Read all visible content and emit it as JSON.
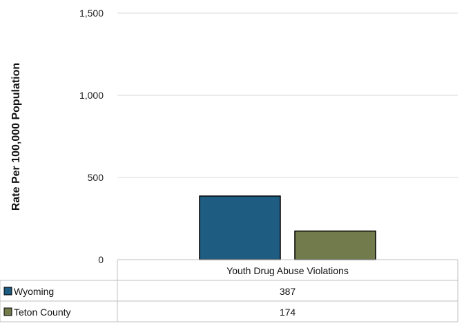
{
  "chart_data": {
    "type": "bar",
    "ylabel": "Rate Per 100,000 Population",
    "ylim": [
      0,
      1500
    ],
    "yticks": [
      0,
      500,
      1000,
      1500
    ],
    "ytick_labels": [
      "0",
      "500",
      "1,000",
      "1,500"
    ],
    "grid": true,
    "categories": [
      "Youth Drug Abuse Violations"
    ],
    "series": [
      {
        "name": "Wyoming",
        "values": [
          387
        ],
        "value_labels": [
          "387"
        ],
        "color": "#1f5c82"
      },
      {
        "name": "Teton County",
        "values": [
          174
        ],
        "value_labels": [
          "174"
        ],
        "color": "#727b4b"
      }
    ],
    "legend": "data-table-below"
  }
}
